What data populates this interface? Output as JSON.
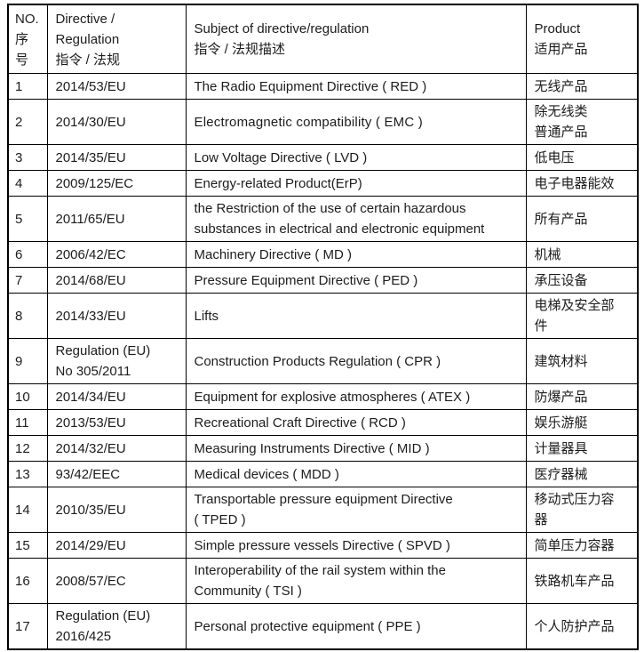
{
  "colors": {
    "background": "#ffffff",
    "text": "#1c1c1c",
    "border": "#000000"
  },
  "table": {
    "columns": [
      {
        "id": "no",
        "label": "NO.\n序\n号"
      },
      {
        "id": "directive",
        "label": "Directive /\nRegulation\n指令 / 法规"
      },
      {
        "id": "subject",
        "label": "Subject of directive/regulation\n指令 / 法规描述"
      },
      {
        "id": "product",
        "label": "Product\n适用产品"
      }
    ],
    "rows": [
      {
        "no": "1",
        "directive": "2014/53/EU",
        "subject": "The Radio Equipment Directive ( RED )",
        "product": "无线产品"
      },
      {
        "no": "2",
        "directive": "2014/30/EU",
        "subject": "Electromagnetic compatibility ( EMC )",
        "product": "除无线类\n普通产品",
        "emphasis": true
      },
      {
        "no": "3",
        "directive": "2014/35/EU",
        "subject": "Low Voltage Directive ( LVD )",
        "product": "低电压"
      },
      {
        "no": "4",
        "directive": "2009/125/EC",
        "subject": "Energy-related Product(ErP)",
        "product": "电子电器能效"
      },
      {
        "no": "5",
        "directive": "2011/65/EU",
        "subject": "the Restriction of the use of certain hazardous\nsubstances in electrical and electronic equipment",
        "product": "所有产品"
      },
      {
        "no": "6",
        "directive": "2006/42/EC",
        "subject": "Machinery Directive ( MD )",
        "product": "机械"
      },
      {
        "no": "7",
        "directive": "2014/68/EU",
        "subject": "Pressure Equipment Directive ( PED )",
        "product": "承压设备"
      },
      {
        "no": "8",
        "directive": "2014/33/EU",
        "subject": "Lifts",
        "product": "电梯及安全部\n件"
      },
      {
        "no": "9",
        "directive": "Regulation (EU)\nNo 305/2011",
        "subject": "Construction Products Regulation ( CPR )",
        "product": "建筑材料"
      },
      {
        "no": "10",
        "directive": "2014/34/EU",
        "subject": "Equipment for explosive atmospheres ( ATEX )",
        "product": "防爆产品"
      },
      {
        "no": "11",
        "directive": "2013/53/EU",
        "subject": "Recreational Craft Directive ( RCD )",
        "product": "娱乐游艇"
      },
      {
        "no": "12",
        "directive": "2014/32/EU",
        "subject": "Measuring Instruments Directive ( MID )",
        "product": "计量器具"
      },
      {
        "no": "13",
        "directive": "93/42/EEC",
        "subject": "Medical devices ( MDD )",
        "product": "医疗器械"
      },
      {
        "no": "14",
        "directive": "2010/35/EU",
        "subject": "Transportable pressure equipment Directive\n( TPED )",
        "product": "移动式压力容\n器"
      },
      {
        "no": "15",
        "directive": "2014/29/EU",
        "subject": "Simple pressure vessels Directive ( SPVD )",
        "product": "简单压力容器"
      },
      {
        "no": "16",
        "directive": "2008/57/EC",
        "subject": "Interoperability of the rail system within the\nCommunity ( TSI )",
        "product": "铁路机车产品"
      },
      {
        "no": "17",
        "directive": "Regulation (EU)\n2016/425",
        "subject": "Personal protective equipment ( PPE )",
        "product": "个人防护产品"
      }
    ]
  }
}
